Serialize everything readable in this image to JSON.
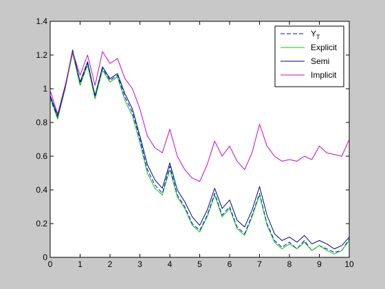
{
  "chart_data": {
    "type": "line",
    "xlim": [
      0,
      10
    ],
    "ylim": [
      0,
      1.4
    ],
    "x_ticks": [
      0,
      1,
      2,
      3,
      4,
      5,
      6,
      7,
      8,
      9,
      10
    ],
    "y_ticks": [
      0,
      0.2,
      0.4,
      0.6,
      0.8,
      1,
      1.2,
      1.4
    ],
    "x_tick_labels": [
      "0",
      "1",
      "2",
      "3",
      "4",
      "5",
      "6",
      "7",
      "8",
      "9",
      "10"
    ],
    "y_tick_labels": [
      "0",
      "0.2",
      "0.4",
      "0.6",
      "0.8",
      "1",
      "1.2",
      "1.4"
    ],
    "grid": false,
    "legend_position": "top-right",
    "x": [
      0,
      0.25,
      0.5,
      0.75,
      1,
      1.25,
      1.5,
      1.75,
      2,
      2.25,
      2.5,
      2.75,
      3,
      3.25,
      3.5,
      3.75,
      4,
      4.25,
      4.5,
      4.75,
      5,
      5.25,
      5.5,
      5.75,
      6,
      6.25,
      6.5,
      6.75,
      7,
      7.25,
      7.5,
      7.75,
      8,
      8.25,
      8.5,
      8.75,
      9,
      9.25,
      9.5,
      9.75,
      10
    ],
    "series": [
      {
        "name": "Y",
        "name_subscript": "T",
        "color": "#0000ff",
        "dash": "dashed",
        "values": [
          0.95,
          0.83,
          1.0,
          1.22,
          1.03,
          1.15,
          0.95,
          1.12,
          1.05,
          1.08,
          0.95,
          0.86,
          0.7,
          0.52,
          0.43,
          0.38,
          0.54,
          0.37,
          0.3,
          0.2,
          0.16,
          0.25,
          0.38,
          0.25,
          0.3,
          0.18,
          0.14,
          0.25,
          0.38,
          0.2,
          0.1,
          0.06,
          0.09,
          0.05,
          0.1,
          0.04,
          0.07,
          0.05,
          0.03,
          0.04,
          0.11
        ]
      },
      {
        "name": "Explicit",
        "color": "#00cc00",
        "dash": "solid",
        "values": [
          0.94,
          0.82,
          1.0,
          1.21,
          1.02,
          1.14,
          0.94,
          1.11,
          1.04,
          1.07,
          0.93,
          0.84,
          0.68,
          0.5,
          0.41,
          0.37,
          0.52,
          0.36,
          0.29,
          0.19,
          0.15,
          0.24,
          0.37,
          0.24,
          0.29,
          0.17,
          0.13,
          0.24,
          0.37,
          0.19,
          0.09,
          0.05,
          0.08,
          0.05,
          0.09,
          0.04,
          0.07,
          0.04,
          0.02,
          0.04,
          0.1
        ]
      },
      {
        "name": "Semi",
        "color": "#000080",
        "dash": "solid",
        "values": [
          0.96,
          0.84,
          1.01,
          1.23,
          1.04,
          1.16,
          0.96,
          1.13,
          1.06,
          1.09,
          0.97,
          0.88,
          0.72,
          0.55,
          0.46,
          0.41,
          0.56,
          0.4,
          0.33,
          0.24,
          0.19,
          0.28,
          0.41,
          0.29,
          0.34,
          0.22,
          0.18,
          0.28,
          0.42,
          0.25,
          0.14,
          0.1,
          0.12,
          0.09,
          0.13,
          0.08,
          0.1,
          0.08,
          0.05,
          0.07,
          0.12
        ]
      },
      {
        "name": "Implicit",
        "color": "#cc00cc",
        "dash": "solid",
        "values": [
          0.99,
          0.85,
          1.02,
          1.22,
          1.08,
          1.2,
          1.02,
          1.22,
          1.15,
          1.18,
          1.06,
          1.0,
          0.88,
          0.72,
          0.65,
          0.62,
          0.76,
          0.6,
          0.52,
          0.47,
          0.45,
          0.55,
          0.69,
          0.6,
          0.66,
          0.57,
          0.52,
          0.62,
          0.79,
          0.66,
          0.6,
          0.57,
          0.58,
          0.57,
          0.6,
          0.58,
          0.66,
          0.62,
          0.61,
          0.6,
          0.7
        ]
      }
    ]
  }
}
